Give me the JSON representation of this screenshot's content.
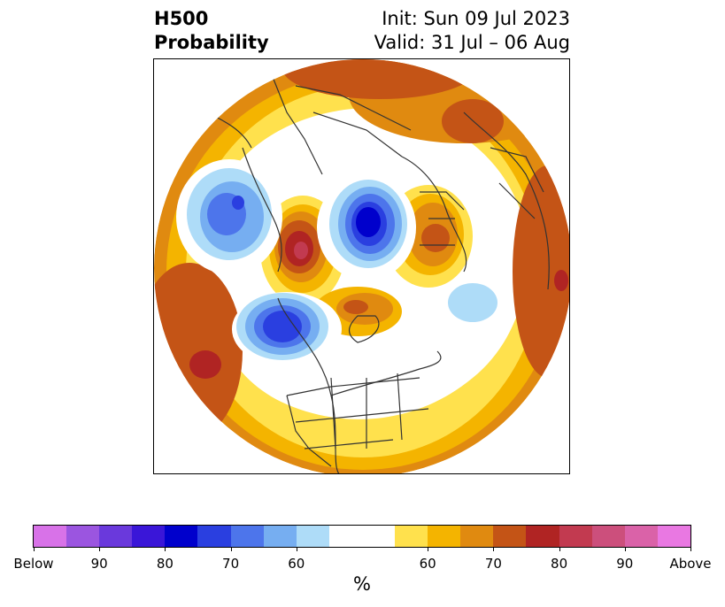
{
  "header": {
    "title_line1": "H500",
    "title_line2": "Probability",
    "init_text": "Init: Sun 09 Jul 2023",
    "valid_text": "Valid: 31 Jul – 06 Aug"
  },
  "map": {
    "projection": "north-polar-stereographic",
    "features": [
      "coastlines",
      "country-borders",
      "us-state-borders"
    ],
    "anomaly_regions": [
      {
        "name": "above-normal-ring",
        "category": "above",
        "level": "50-70"
      },
      {
        "name": "below-normal-alaska-gulf",
        "category": "below",
        "level": "60-85"
      },
      {
        "name": "below-normal-barents",
        "category": "below",
        "level": "60-90"
      },
      {
        "name": "below-normal-east-pacific",
        "category": "below",
        "level": "60-80"
      },
      {
        "name": "above-normal-east-siberia",
        "category": "above",
        "level": "60-90"
      },
      {
        "name": "above-normal-scandinavia",
        "category": "above",
        "level": "60-80"
      },
      {
        "name": "above-normal-north-pacific",
        "category": "above",
        "level": "60-80"
      }
    ]
  },
  "colorbar": {
    "colors": [
      "#d872e8",
      "#9b55e0",
      "#6a39dc",
      "#3a16d8",
      "#0000cc",
      "#2a3fe0",
      "#4d75eb",
      "#76aef1",
      "#aedcf8",
      "#ffffff",
      "#ffe14d",
      "#f4b400",
      "#e08a10",
      "#c45416",
      "#b02423",
      "#c23a50",
      "#cc4f7c",
      "#da62a8",
      "#e978e2"
    ],
    "tick_labels": [
      "Below",
      "90",
      "80",
      "70",
      "60",
      "60",
      "70",
      "80",
      "90",
      "Above"
    ],
    "unit_label": "%"
  }
}
